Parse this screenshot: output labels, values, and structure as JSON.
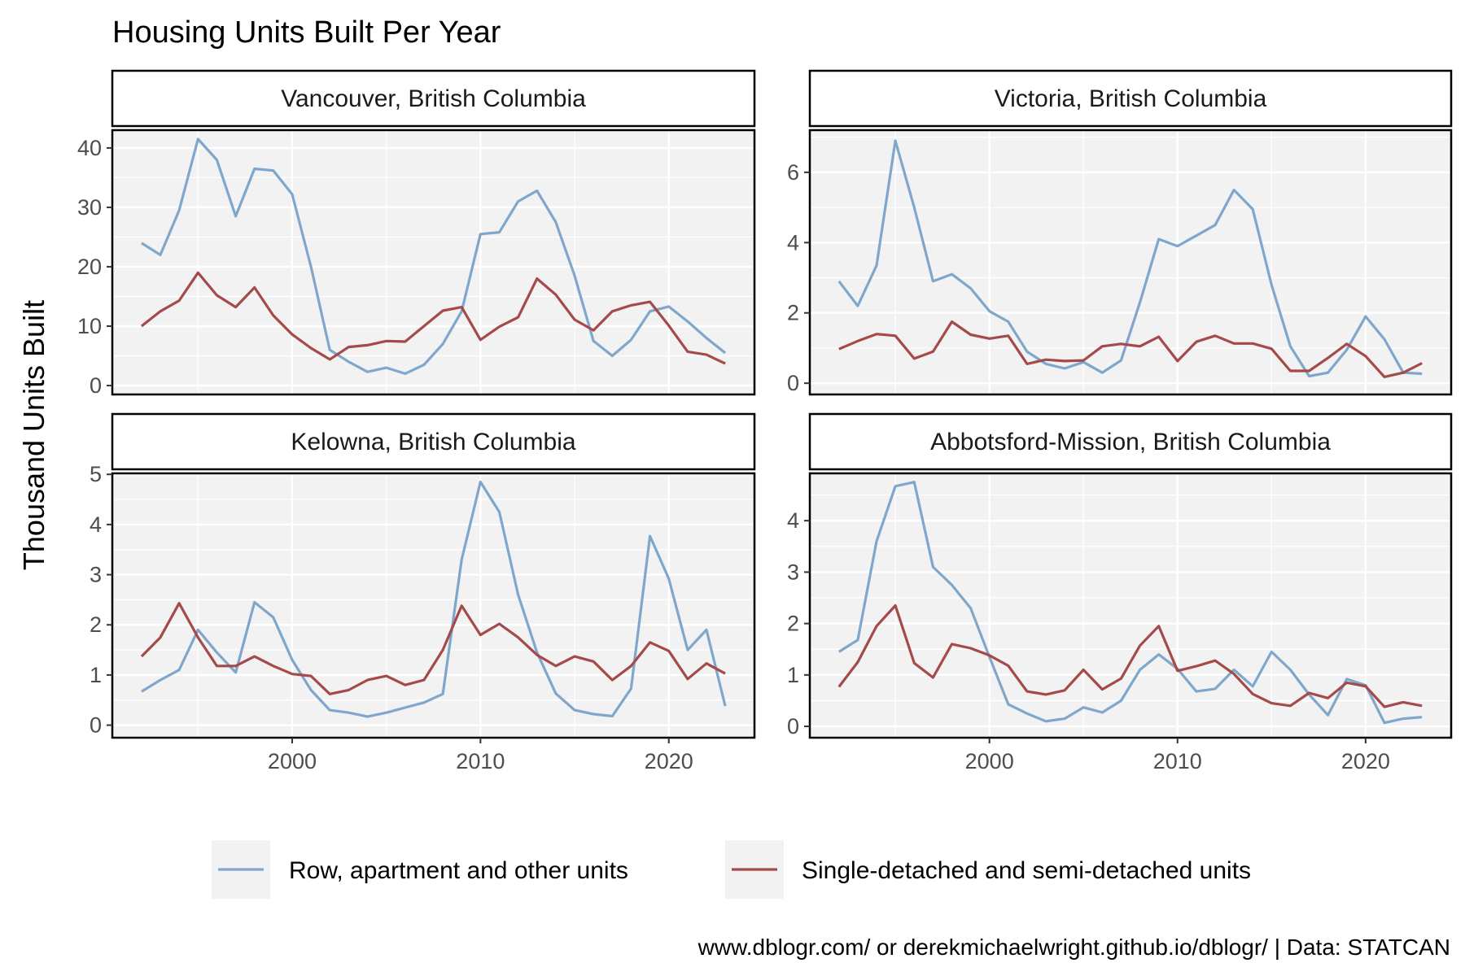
{
  "title": "Housing Units Built Per Year",
  "ylabel": "Thousand Units Built",
  "caption": "www.dblogr.com/ or derekmichaelwright.github.io/dblogr/ | Data: STATCAN",
  "colors": {
    "row": "#7fa7cc",
    "single": "#a44a4a",
    "panel_bg": "#f2f2f2",
    "grid": "#ffffff"
  },
  "legend": {
    "placement": "bottom",
    "items": [
      {
        "key": "row",
        "label": "Row, apartment and other units"
      },
      {
        "key": "single",
        "label": "Single-detached and semi-detached units"
      }
    ]
  },
  "chart_data": [
    {
      "type": "line",
      "title": "Vancouver, British Columbia",
      "x": [
        1992,
        1993,
        1994,
        1995,
        1996,
        1997,
        1998,
        1999,
        2000,
        2001,
        2002,
        2003,
        2004,
        2005,
        2006,
        2007,
        2008,
        2009,
        2010,
        2011,
        2012,
        2013,
        2014,
        2015,
        2016,
        2017,
        2018,
        2019,
        2020,
        2021,
        2022,
        2023
      ],
      "xticks": [
        2000,
        2010,
        2020
      ],
      "ylim": [
        -1.5,
        43
      ],
      "yticks": [
        0,
        10,
        20,
        30,
        40
      ],
      "series": [
        {
          "key": "row",
          "name": "Row, apartment and other units",
          "values": [
            24,
            22,
            29.5,
            41.5,
            38,
            28.5,
            36.5,
            36.2,
            32.2,
            20,
            6,
            4,
            2.3,
            3,
            2,
            3.5,
            7,
            12.5,
            25.5,
            25.8,
            31,
            32.8,
            27.5,
            18.5,
            7.5,
            5,
            7.7,
            12.5,
            13.3,
            10.8,
            8,
            5.5
          ]
        },
        {
          "key": "single",
          "name": "Single-detached and semi-detached units",
          "values": [
            10,
            12.5,
            14.3,
            19,
            15.2,
            13.2,
            16.5,
            11.8,
            8.6,
            6.3,
            4.4,
            6.5,
            6.8,
            7.5,
            7.4,
            10,
            12.6,
            13.2,
            7.7,
            9.9,
            11.5,
            18,
            15.3,
            11.1,
            9.3,
            12.5,
            13.5,
            14.1,
            10.1,
            5.7,
            5.2,
            3.7
          ]
        }
      ]
    },
    {
      "type": "line",
      "title": "Victoria, British Columbia",
      "x": [
        1992,
        1993,
        1994,
        1995,
        1996,
        1997,
        1998,
        1999,
        2000,
        2001,
        2002,
        2003,
        2004,
        2005,
        2006,
        2007,
        2008,
        2009,
        2010,
        2011,
        2012,
        2013,
        2014,
        2015,
        2016,
        2017,
        2018,
        2019,
        2020,
        2021,
        2022,
        2023
      ],
      "xticks": [
        2000,
        2010,
        2020
      ],
      "ylim": [
        -0.32,
        7.2
      ],
      "yticks": [
        0,
        2,
        4,
        6
      ],
      "series": [
        {
          "key": "row",
          "name": "Row, apartment and other units",
          "values": [
            2.9,
            2.2,
            3.35,
            6.9,
            5,
            2.9,
            3.1,
            2.7,
            2.05,
            1.75,
            0.9,
            0.55,
            0.42,
            0.6,
            0.3,
            0.65,
            2.3,
            4.1,
            3.9,
            4.2,
            4.5,
            5.5,
            4.95,
            2.8,
            1.05,
            0.2,
            0.3,
            0.95,
            1.9,
            1.25,
            0.3,
            0.27
          ]
        },
        {
          "key": "single",
          "name": "Single-detached and semi-detached units",
          "values": [
            0.97,
            1.2,
            1.4,
            1.35,
            0.7,
            0.9,
            1.75,
            1.38,
            1.27,
            1.35,
            0.55,
            0.67,
            0.63,
            0.65,
            1.05,
            1.12,
            1.05,
            1.32,
            0.63,
            1.18,
            1.35,
            1.13,
            1.13,
            0.98,
            0.35,
            0.35,
            0.72,
            1.12,
            0.77,
            0.18,
            0.3,
            0.57
          ]
        }
      ]
    },
    {
      "type": "line",
      "title": "Kelowna, British Columbia",
      "x": [
        1992,
        1993,
        1994,
        1995,
        1996,
        1997,
        1998,
        1999,
        2000,
        2001,
        2002,
        2003,
        2004,
        2005,
        2006,
        2007,
        2008,
        2009,
        2010,
        2011,
        2012,
        2013,
        2014,
        2015,
        2016,
        2017,
        2018,
        2019,
        2020,
        2021,
        2022,
        2023
      ],
      "xticks": [
        2000,
        2010,
        2020
      ],
      "ylim": [
        -0.25,
        5.02
      ],
      "yticks": [
        0,
        1,
        2,
        3,
        4,
        5
      ],
      "series": [
        {
          "key": "row",
          "name": "Row, apartment and other units",
          "values": [
            0.67,
            0.9,
            1.1,
            1.9,
            1.45,
            1.05,
            2.45,
            2.15,
            1.3,
            0.7,
            0.3,
            0.25,
            0.17,
            0.25,
            0.35,
            0.45,
            0.62,
            3.3,
            4.85,
            4.25,
            2.6,
            1.45,
            0.63,
            0.3,
            0.22,
            0.18,
            0.73,
            3.77,
            2.92,
            1.5,
            1.9,
            0.38
          ]
        },
        {
          "key": "single",
          "name": "Single-detached and semi-detached units",
          "values": [
            1.37,
            1.75,
            2.43,
            1.75,
            1.18,
            1.18,
            1.37,
            1.18,
            1.02,
            0.98,
            0.62,
            0.7,
            0.9,
            0.98,
            0.8,
            0.9,
            1.5,
            2.38,
            1.8,
            2.02,
            1.75,
            1.4,
            1.18,
            1.37,
            1.27,
            0.9,
            1.18,
            1.65,
            1.48,
            0.92,
            1.23,
            1.03
          ]
        }
      ]
    },
    {
      "type": "line",
      "title": "Abbotsford-Mission, British Columbia",
      "x": [
        1992,
        1993,
        1994,
        1995,
        1996,
        1997,
        1998,
        1999,
        2000,
        2001,
        2002,
        2003,
        2004,
        2005,
        2006,
        2007,
        2008,
        2009,
        2010,
        2011,
        2012,
        2013,
        2014,
        2015,
        2016,
        2017,
        2018,
        2019,
        2020,
        2021,
        2022,
        2023
      ],
      "xticks": [
        2000,
        2010,
        2020
      ],
      "ylim": [
        -0.22,
        4.92
      ],
      "yticks": [
        0,
        1,
        2,
        3,
        4
      ],
      "series": [
        {
          "key": "row",
          "name": "Row, apartment and other units",
          "values": [
            1.45,
            1.68,
            3.6,
            4.67,
            4.75,
            3.1,
            2.75,
            2.3,
            1.35,
            0.43,
            0.25,
            0.1,
            0.15,
            0.37,
            0.27,
            0.5,
            1.1,
            1.4,
            1.12,
            0.68,
            0.73,
            1.1,
            0.78,
            1.45,
            1.1,
            0.62,
            0.22,
            0.92,
            0.8,
            0.07,
            0.15,
            0.18
          ]
        },
        {
          "key": "single",
          "name": "Single-detached and semi-detached units",
          "values": [
            0.77,
            1.25,
            1.95,
            2.35,
            1.23,
            0.95,
            1.6,
            1.52,
            1.38,
            1.18,
            0.68,
            0.62,
            0.7,
            1.1,
            0.72,
            0.93,
            1.57,
            1.95,
            1.08,
            1.17,
            1.28,
            1.02,
            0.63,
            0.45,
            0.4,
            0.65,
            0.55,
            0.85,
            0.78,
            0.38,
            0.47,
            0.4
          ]
        }
      ]
    }
  ]
}
